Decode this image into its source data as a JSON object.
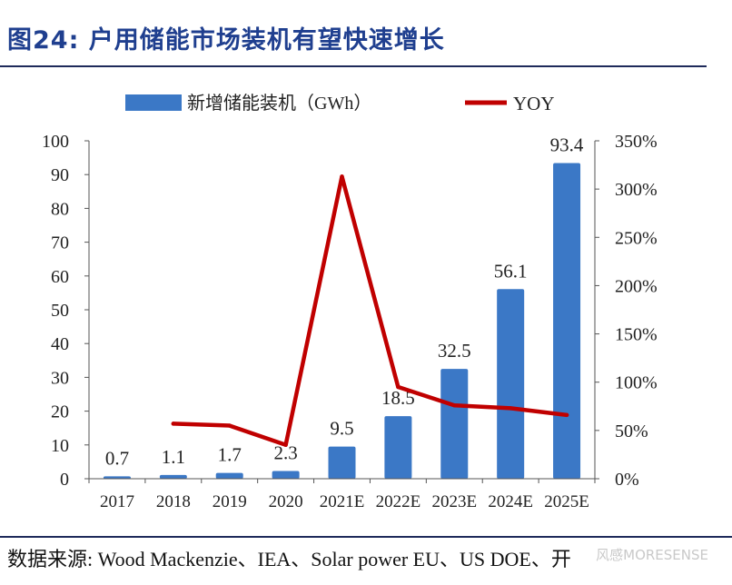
{
  "figure": {
    "title": "图24:  户用储能市场装机有望快速增长",
    "source": "数据来源:  Wood Mackenzie、IEA、Solar power EU、US DOE、开",
    "watermark": "风感MORESENSE"
  },
  "colors": {
    "bar": "#3b78c6",
    "line": "#c00000",
    "title": "#1f3f8f",
    "rule": "#1e2a5a"
  },
  "chart_data": {
    "type": "bar+line",
    "categories": [
      "2017",
      "2018",
      "2019",
      "2020",
      "2021E",
      "2022E",
      "2023E",
      "2024E",
      "2025E"
    ],
    "series": [
      {
        "name": "新增储能装机（GWh）",
        "kind": "bar",
        "axis": "left",
        "values": [
          0.7,
          1.1,
          1.7,
          2.3,
          9.5,
          18.5,
          32.5,
          56.1,
          93.4
        ],
        "labels": [
          "0.7",
          "1.1",
          "1.7",
          "2.3",
          "9.5",
          "18.5",
          "32.5",
          "56.1",
          "93.4"
        ]
      },
      {
        "name": "YOY",
        "kind": "line",
        "axis": "right",
        "values": [
          null,
          57,
          55,
          35,
          313,
          95,
          76,
          73,
          66
        ]
      }
    ],
    "y_left": {
      "min": 0,
      "max": 100,
      "ticks": [
        "0",
        "10",
        "20",
        "30",
        "40",
        "50",
        "60",
        "70",
        "80",
        "90",
        "100"
      ]
    },
    "y_right": {
      "min": 0,
      "max": 350,
      "ticks": [
        "0%",
        "50%",
        "100%",
        "150%",
        "200%",
        "250%",
        "300%",
        "350%"
      ]
    },
    "legend": {
      "position": "top",
      "entries": [
        "新增储能装机（GWh）",
        "YOY"
      ]
    }
  }
}
